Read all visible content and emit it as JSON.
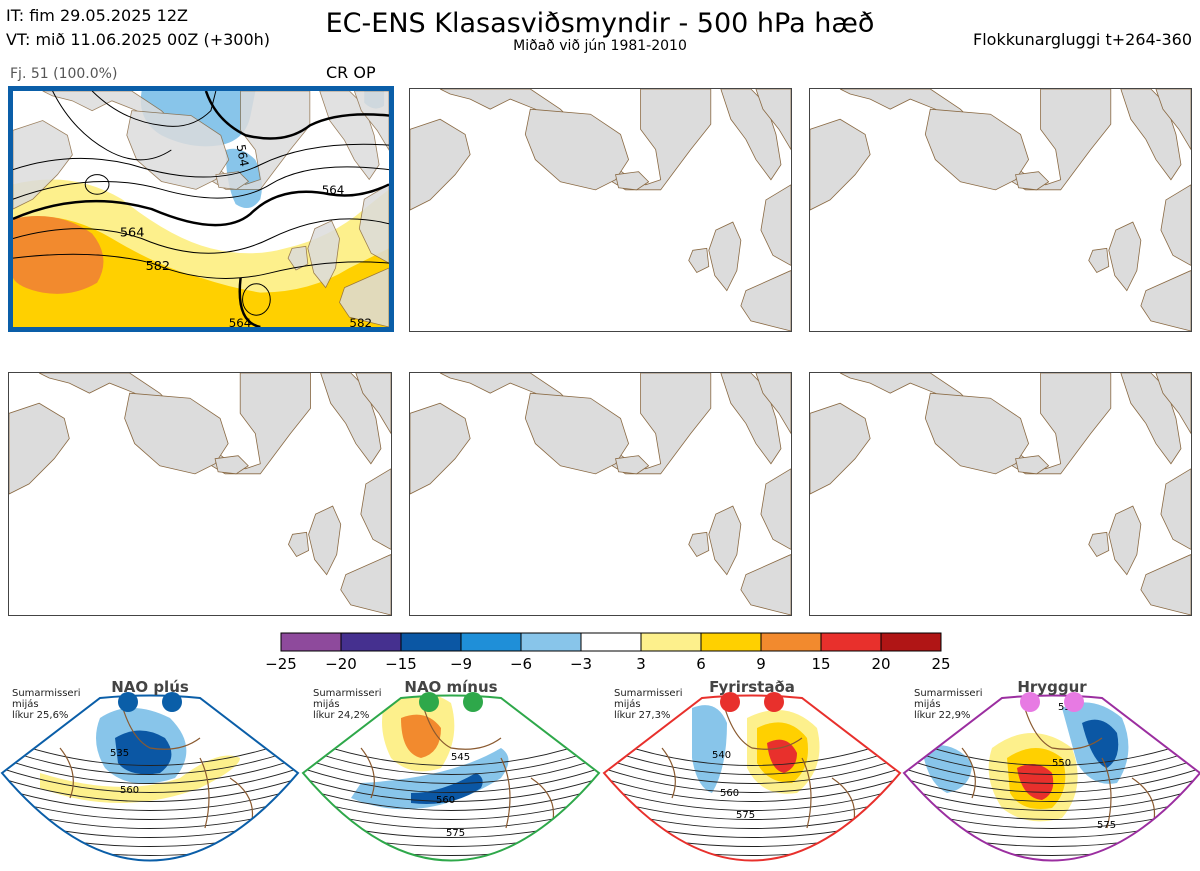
{
  "header": {
    "it_line": "IT: fim 29.05.2025 12Z",
    "vt_line": "VT: mið 11.06.2025 00Z  (+300h)",
    "title": "EC-ENS Klasasviðsmyndir - 500 hPa hæð",
    "subtitle": "Miðað við jún 1981-2010",
    "window": "Flokkunargluggi t+264-360"
  },
  "panel1": {
    "member_info": "Fj. 51 (100.0%)",
    "tag": "CR OP",
    "contour_labels": [
      "564",
      "582",
      "564",
      "564",
      "582",
      "564"
    ]
  },
  "colorbar": {
    "colors": [
      "#8e4a9c",
      "#45308f",
      "#0b57a4",
      "#1f8fd8",
      "#88c5ea",
      "#ffffff",
      "#fdf08c",
      "#ffd000",
      "#f28a2e",
      "#e8302c",
      "#b01515"
    ],
    "ticks": [
      "−25",
      "−20",
      "−15",
      "−9",
      "−6",
      "−3",
      "3",
      "6",
      "9",
      "15",
      "20",
      "25"
    ]
  },
  "regimes": [
    {
      "name": "NAO plús",
      "season": "Sumarmisseri",
      "line2": "mijás",
      "prob": "líkur 25,6%",
      "color": "#0a5ea8",
      "labels": [
        "535",
        "560"
      ]
    },
    {
      "name": "NAO mínus",
      "season": "Sumarmisseri",
      "line2": "mijás",
      "prob": "líkur 24,2%",
      "color": "#2ea84a",
      "labels": [
        "545",
        "560",
        "575"
      ]
    },
    {
      "name": "Fyrirstaða",
      "season": "Sumarmisseri",
      "line2": "mijás",
      "prob": "líkur 27,3%",
      "color": "#e8302c",
      "labels": [
        "540",
        "560",
        "575"
      ]
    },
    {
      "name": "Hryggur",
      "season": "Sumarmisseri",
      "line2": "mijás",
      "prob": "líkur 22,9%",
      "color": "#9b2ea0",
      "labels": [
        "530",
        "550",
        "575"
      ]
    }
  ]
}
